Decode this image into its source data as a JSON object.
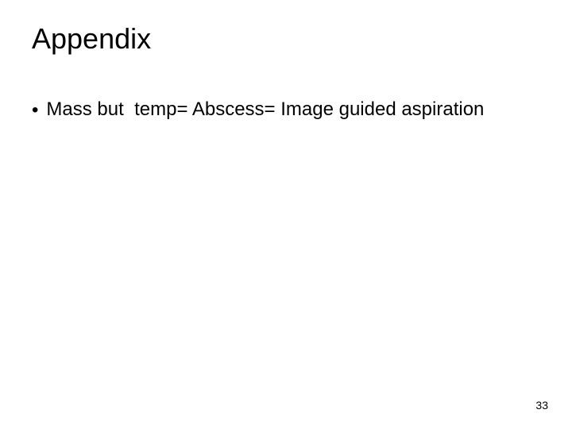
{
  "slide": {
    "title": "Appendix",
    "bullets": [
      {
        "prefix": "Mass but ",
        "arrow_symbol": "",
        "suffix": " temp= Abscess= Image guided aspiration"
      }
    ],
    "page_number": "33"
  },
  "style": {
    "background_color": "#ffffff",
    "text_color": "#000000",
    "title_fontsize": 36,
    "body_fontsize": 24,
    "page_number_fontsize": 14
  }
}
